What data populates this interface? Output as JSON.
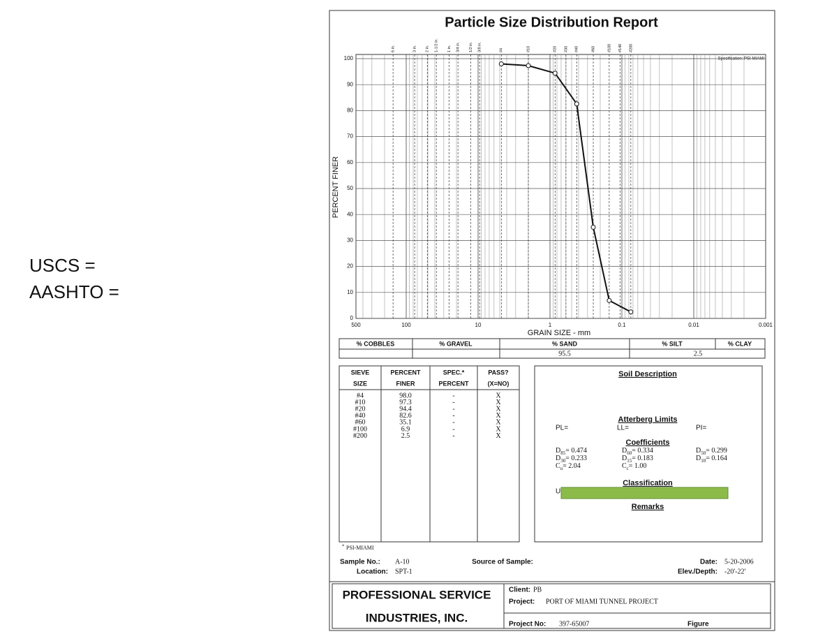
{
  "slide": {
    "uscs": "USCS =",
    "aashto": "AASHTO ="
  },
  "chart_data": {
    "type": "line",
    "title": "Particle Size Distribution Report",
    "xlabel": "GRAIN SIZE - mm",
    "ylabel": "PERCENT FINER",
    "legend_label": "Specification: PSI-MIAMI",
    "x": [
      4.75,
      2,
      0.85,
      0.425,
      0.25,
      0.15,
      0.075
    ],
    "values": [
      98.0,
      97.3,
      94.4,
      82.6,
      35.1,
      6.9,
      2.5
    ],
    "value_labels": [
      "98.0",
      "97.3",
      "94.4",
      "82.6",
      "35.1",
      "6.9",
      "2.5"
    ],
    "color": "#111111",
    "xscale": "log",
    "grid": true,
    "xlim": [
      500,
      0.001
    ],
    "xticks": [
      500,
      100,
      10,
      1,
      0.1,
      0.01,
      0.001
    ],
    "ylim": [
      0,
      100
    ],
    "yticks": [
      0,
      10,
      20,
      30,
      40,
      50,
      60,
      70,
      80,
      90,
      100
    ],
    "top_ticks": [
      {
        "value": 152.4,
        "label": "6 in."
      },
      {
        "value": 76.2,
        "label": "3 in."
      },
      {
        "value": 50.8,
        "label": "2 in."
      },
      {
        "value": 38.1,
        "label": "1-1/2 in."
      },
      {
        "value": 25.4,
        "label": "1 in."
      },
      {
        "value": 19.05,
        "label": "3/4 in."
      },
      {
        "value": 12.7,
        "label": "1/2 in."
      },
      {
        "value": 9.525,
        "label": "3/8 in."
      },
      {
        "value": 4.75,
        "label": "#4"
      },
      {
        "value": 2,
        "label": "#10"
      },
      {
        "value": 0.85,
        "label": "#20"
      },
      {
        "value": 0.6,
        "label": "#30"
      },
      {
        "value": 0.425,
        "label": "#40"
      },
      {
        "value": 0.25,
        "label": "#60"
      },
      {
        "value": 0.15,
        "label": "#100"
      },
      {
        "value": 0.106,
        "label": "#140"
      },
      {
        "value": 0.075,
        "label": "#200"
      }
    ]
  },
  "document": {
    "gradation": {
      "headers": [
        "% COBBLES",
        "% GRAVEL",
        "% SAND",
        "% SILT",
        "% CLAY"
      ],
      "sand": "95.5",
      "silt": "2.5"
    },
    "sieve_table": {
      "headers": [
        [
          "SIEVE",
          "SIZE"
        ],
        [
          "PERCENT",
          "FINER"
        ],
        [
          "SPEC.*",
          "PERCENT"
        ],
        [
          "PASS?",
          "(X=NO)"
        ]
      ],
      "rows": [
        [
          "#4",
          "-",
          "X"
        ],
        [
          "#10",
          "-",
          "X"
        ],
        [
          "#20",
          "-",
          "X"
        ],
        [
          "#40",
          "-",
          "X"
        ],
        [
          "#60",
          "-",
          "X"
        ],
        [
          "#100",
          "-",
          "X"
        ],
        [
          "#200",
          "-",
          "X"
        ]
      ]
    },
    "footnote": {
      "mark": "*",
      "text": "PSI-MIAMI"
    },
    "soil": {
      "title": "Soil Description",
      "atterberg": "Atterberg Limits",
      "pl": "PL=",
      "ll": "LL=",
      "pi": "PI=",
      "coefficients_title": "Coefficients",
      "coefficients": [
        [
          {
            "sym": "D",
            "sub": "85",
            "rest": "= 0.474"
          },
          {
            "sym": "D",
            "sub": "60",
            "rest": "= 0.334"
          },
          {
            "sym": "D",
            "sub": "50",
            "rest": "= 0.299"
          }
        ],
        [
          {
            "sym": "D",
            "sub": "30",
            "rest": "= 0.233"
          },
          {
            "sym": "D",
            "sub": "15",
            "rest": "= 0.183"
          },
          {
            "sym": "D",
            "sub": "10",
            "rest": "= 0.164"
          }
        ],
        [
          {
            "sym": "C",
            "sub": "u",
            "rest": "= 2.04"
          },
          {
            "sym": "C",
            "sub": "c",
            "rest": "= 1.00"
          }
        ]
      ],
      "classification": "Classification",
      "class_prefix": "U",
      "remarks": "Remarks"
    },
    "sample": {
      "sample_label": "Sample No.:",
      "sample_no": "A-10",
      "location_label": "Location:",
      "location": "SPT-1",
      "source_label": "Source of Sample:",
      "date_label": "Date:",
      "date": "5-20-2006",
      "elev_label": "Elev./Depth:",
      "elev": "-20'-22'"
    },
    "company": {
      "line1": "PROFESSIONAL SERVICE",
      "line2": "INDUSTRIES, INC."
    },
    "project": {
      "client_label": "Client:",
      "client": "PB",
      "project_label": "Project:",
      "project": "PORT OF MIAMI TUNNEL PROJECT",
      "project_no_label": "Project No:",
      "project_no": "397-65007",
      "figure_label": "Figure"
    }
  }
}
